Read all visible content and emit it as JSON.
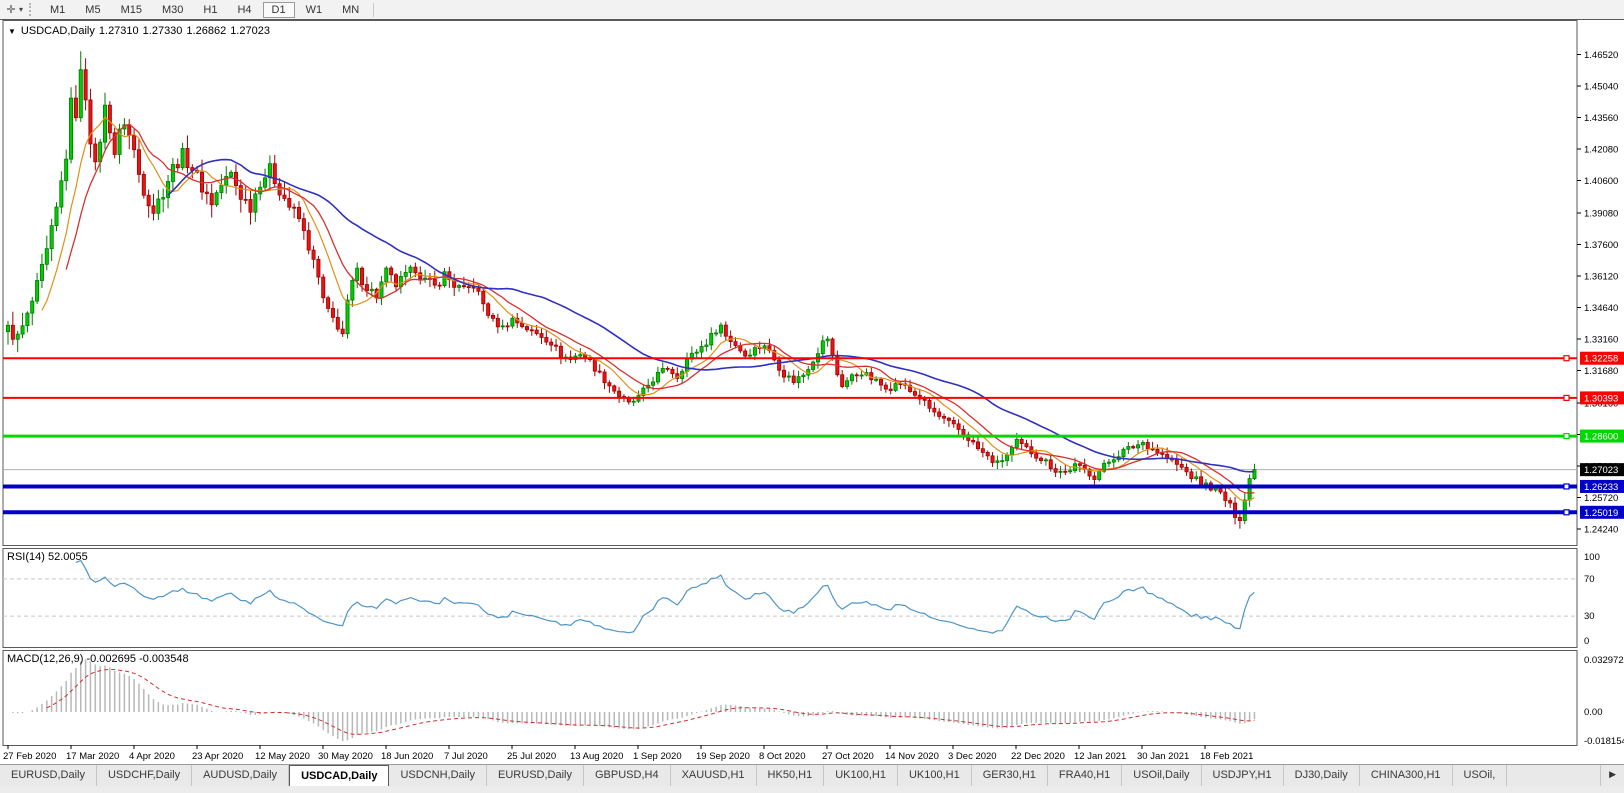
{
  "toolbar": {
    "cursor_tool": "crosshair",
    "dropdown_glyph": "▾",
    "timeframes": [
      "M1",
      "M5",
      "M15",
      "M30",
      "H1",
      "H4",
      "D1",
      "W1",
      "MN"
    ],
    "active_timeframe": "D1"
  },
  "chart": {
    "dropdown_glyph": "▼",
    "symbol_title": "USDCAD,Daily",
    "ohlc": {
      "open": "1.27310",
      "high": "1.27330",
      "low": "1.26862",
      "close": "1.27023"
    }
  },
  "rsi_panel": {
    "label": "RSI(14) 52.0055",
    "axis_labels": [
      "100",
      "70",
      "30",
      "0"
    ]
  },
  "macd_panel": {
    "label": "MACD(12,26,9) -0.002695 -0.003548",
    "axis_labels": [
      "0.032972",
      "0.00",
      "-0.018154"
    ]
  },
  "tabs": {
    "items": [
      "EURUSD,Daily",
      "USDCHF,Daily",
      "AUDUSD,Daily",
      "USDCAD,Daily",
      "USDCNH,Daily",
      "EURUSD,Daily",
      "GBPUSD,H4",
      "XAUUSD,H1",
      "HK50,H1",
      "UK100,H1",
      "UK100,H1",
      "GER30,H1",
      "FRA40,H1",
      "USOil,Daily",
      "USDJPY,H1",
      "DJ30,Daily",
      "CHINA300,H1",
      "USOil,"
    ],
    "active_index": 3,
    "scroll_right_glyph": "▶"
  },
  "colors": {
    "candle_up_fill": "#00cc00",
    "candle_up_stroke": "#007a00",
    "candle_down_fill": "#e81414",
    "candle_down_stroke": "#a00000",
    "ma_fast": "#e09018",
    "ma_mid": "#d83030",
    "ma_slow": "#3030c0",
    "rsi_line": "#4d96c8",
    "rsi_dash_level": "#c8c8c8",
    "macd_hist": "#b8b8b8",
    "macd_signal": "#d03030",
    "level_red": "#fe0000",
    "level_green": "#00d800",
    "level_blue": "#0000c8",
    "current_price_line": "#b0b0b0",
    "current_badge_bg": "#000000",
    "panel_border": "#5a5a5a",
    "axis_text": "#000000"
  },
  "chart_data": {
    "type": "candlestick",
    "symbol": "USDCAD",
    "timeframe": "Daily",
    "x_axis_dates": [
      "27 Feb 2020",
      "17 Mar 2020",
      "4 Apr 2020",
      "23 Apr 2020",
      "12 May 2020",
      "30 May 2020",
      "18 Jun 2020",
      "7 Jul 2020",
      "25 Jul 2020",
      "13 Aug 2020",
      "1 Sep 2020",
      "19 Sep 2020",
      "8 Oct 2020",
      "27 Oct 2020",
      "14 Nov 2020",
      "3 Dec 2020",
      "22 Dec 2020",
      "12 Jan 2021",
      "30 Jan 2021",
      "18 Feb 2021"
    ],
    "price_axis": {
      "visible_min": 1.2353,
      "visible_max": 1.481,
      "ticks": [
        "1.46520",
        "1.45040",
        "1.43560",
        "1.42080",
        "1.40600",
        "1.39080",
        "1.37600",
        "1.36120",
        "1.34640",
        "1.33160",
        "1.31680",
        "1.30160",
        "1.28680",
        "1.27200",
        "1.25720",
        "1.24240"
      ]
    },
    "candles": {
      "count": 258,
      "close_keyframes": [
        [
          0,
          1.336
        ],
        [
          2,
          1.332
        ],
        [
          4,
          1.342
        ],
        [
          6,
          1.356
        ],
        [
          8,
          1.372
        ],
        [
          10,
          1.392
        ],
        [
          12,
          1.418
        ],
        [
          13,
          1.442
        ],
        [
          14,
          1.438
        ],
        [
          15,
          1.456
        ],
        [
          16,
          1.446
        ],
        [
          17,
          1.426
        ],
        [
          18,
          1.412
        ],
        [
          19,
          1.426
        ],
        [
          20,
          1.44
        ],
        [
          21,
          1.431
        ],
        [
          22,
          1.419
        ],
        [
          23,
          1.428
        ],
        [
          24,
          1.434
        ],
        [
          25,
          1.427
        ],
        [
          26,
          1.42
        ],
        [
          27,
          1.409
        ],
        [
          28,
          1.402
        ],
        [
          30,
          1.392
        ],
        [
          32,
          1.401
        ],
        [
          34,
          1.412
        ],
        [
          36,
          1.418
        ],
        [
          38,
          1.412
        ],
        [
          40,
          1.403
        ],
        [
          42,
          1.396
        ],
        [
          44,
          1.404
        ],
        [
          46,
          1.409
        ],
        [
          48,
          1.399
        ],
        [
          50,
          1.394
        ],
        [
          52,
          1.406
        ],
        [
          54,
          1.411
        ],
        [
          56,
          1.402
        ],
        [
          58,
          1.394
        ],
        [
          60,
          1.388
        ],
        [
          62,
          1.375
        ],
        [
          64,
          1.36
        ],
        [
          65,
          1.35
        ],
        [
          66,
          1.344
        ],
        [
          68,
          1.338
        ],
        [
          69,
          1.334
        ],
        [
          70,
          1.348
        ],
        [
          71,
          1.358
        ],
        [
          72,
          1.363
        ],
        [
          74,
          1.356
        ],
        [
          76,
          1.352
        ],
        [
          78,
          1.363
        ],
        [
          80,
          1.357
        ],
        [
          82,
          1.361
        ],
        [
          84,
          1.365
        ],
        [
          86,
          1.359
        ],
        [
          88,
          1.356
        ],
        [
          90,
          1.362
        ],
        [
          92,
          1.357
        ],
        [
          94,
          1.354
        ],
        [
          96,
          1.357
        ],
        [
          98,
          1.348
        ],
        [
          100,
          1.34
        ],
        [
          102,
          1.337
        ],
        [
          104,
          1.341
        ],
        [
          106,
          1.338
        ],
        [
          108,
          1.335
        ],
        [
          110,
          1.333
        ],
        [
          112,
          1.33
        ],
        [
          114,
          1.324
        ],
        [
          116,
          1.322
        ],
        [
          118,
          1.325
        ],
        [
          120,
          1.321
        ],
        [
          122,
          1.315
        ],
        [
          124,
          1.31
        ],
        [
          126,
          1.305
        ],
        [
          128,
          1.301
        ],
        [
          130,
          1.304
        ],
        [
          132,
          1.31
        ],
        [
          134,
          1.315
        ],
        [
          136,
          1.318
        ],
        [
          138,
          1.314
        ],
        [
          140,
          1.322
        ],
        [
          142,
          1.326
        ],
        [
          144,
          1.33
        ],
        [
          146,
          1.336
        ],
        [
          147,
          1.338
        ],
        [
          148,
          1.333
        ],
        [
          150,
          1.329
        ],
        [
          152,
          1.324
        ],
        [
          154,
          1.327
        ],
        [
          156,
          1.329
        ],
        [
          158,
          1.322
        ],
        [
          160,
          1.315
        ],
        [
          162,
          1.312
        ],
        [
          164,
          1.315
        ],
        [
          166,
          1.322
        ],
        [
          168,
          1.33
        ],
        [
          169,
          1.332
        ],
        [
          170,
          1.323
        ],
        [
          171,
          1.315
        ],
        [
          172,
          1.31
        ],
        [
          174,
          1.314
        ],
        [
          176,
          1.316
        ],
        [
          178,
          1.313
        ],
        [
          180,
          1.31
        ],
        [
          182,
          1.309
        ],
        [
          184,
          1.311
        ],
        [
          186,
          1.307
        ],
        [
          188,
          1.304
        ],
        [
          190,
          1.299
        ],
        [
          192,
          1.295
        ],
        [
          194,
          1.292
        ],
        [
          196,
          1.289
        ],
        [
          198,
          1.285
        ],
        [
          200,
          1.28
        ],
        [
          202,
          1.276
        ],
        [
          204,
          1.273
        ],
        [
          206,
          1.277
        ],
        [
          208,
          1.283
        ],
        [
          210,
          1.28
        ],
        [
          212,
          1.277
        ],
        [
          214,
          1.274
        ],
        [
          216,
          1.27
        ],
        [
          218,
          1.269
        ],
        [
          220,
          1.272
        ],
        [
          222,
          1.27
        ],
        [
          224,
          1.267
        ],
        [
          226,
          1.272
        ],
        [
          228,
          1.276
        ],
        [
          230,
          1.279
        ],
        [
          232,
          1.281
        ],
        [
          234,
          1.283
        ],
        [
          236,
          1.28
        ],
        [
          238,
          1.277
        ],
        [
          240,
          1.274
        ],
        [
          242,
          1.271
        ],
        [
          244,
          1.267
        ],
        [
          246,
          1.264
        ],
        [
          248,
          1.262
        ],
        [
          250,
          1.259
        ],
        [
          252,
          1.253
        ],
        [
          253,
          1.248
        ],
        [
          254,
          1.2465
        ],
        [
          255,
          1.256
        ],
        [
          256,
          1.266
        ],
        [
          257,
          1.27023
        ]
      ],
      "high_overrides": {
        "15": 1.4668,
        "16": 1.4635
      },
      "low_overrides": {
        "253": 1.2445,
        "254": 1.2425
      },
      "noise_amplitude": 0.004
    },
    "moving_averages": [
      {
        "name": "fast",
        "period": 8
      },
      {
        "name": "mid",
        "period": 13
      },
      {
        "name": "slow",
        "period": 34
      }
    ],
    "horizontal_levels": [
      {
        "value": 1.32258,
        "label": "1.32258",
        "color_key": "level_red",
        "width": 2
      },
      {
        "value": 1.30393,
        "label": "1.30393",
        "color_key": "level_red",
        "width": 2
      },
      {
        "value": 1.286,
        "label": "1.28600",
        "color_key": "level_green",
        "width": 3
      },
      {
        "value": 1.26233,
        "label": "1.26233",
        "color_key": "level_blue",
        "width": 4
      },
      {
        "value": 1.25019,
        "label": "1.25019",
        "color_key": "level_blue",
        "width": 4
      }
    ],
    "current_price": {
      "value": 1.27023,
      "label": "1.27023"
    },
    "rsi": {
      "period": 14,
      "last_value": 52.0055,
      "range": [
        0,
        100
      ],
      "dashed_levels": [
        70,
        30
      ]
    },
    "macd": {
      "fast": 12,
      "slow": 26,
      "signal": 9,
      "last_main": -0.002695,
      "last_signal": -0.003548,
      "scale_max": 0.032972,
      "scale_min": -0.018154
    }
  }
}
